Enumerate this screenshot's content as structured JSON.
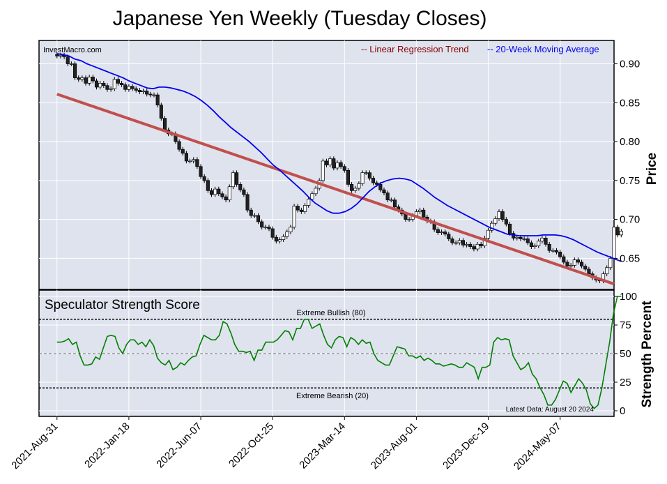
{
  "title": "Japanese Yen Weekly (Tuesday Closes)",
  "watermark": "InvestMacro.com",
  "legend": {
    "regression": "-- Linear Regression Trend",
    "moving_average": "-- 20-Week Moving Average"
  },
  "colors": {
    "panel_bg": "#dfe3ee",
    "regression": "#c0504d",
    "moving_average": "#0000ee",
    "strength": "#008000",
    "legend_red": "#8b0000"
  },
  "chart_data": [
    {
      "type": "candlestick",
      "ylabel": "Price",
      "ylim": [
        0.61,
        0.93
      ],
      "yticks": [
        "0.90",
        "0.85",
        "0.80",
        "0.75",
        "0.70",
        "0.65"
      ],
      "xlim": [
        -5,
        155
      ],
      "x_tick_labels": [
        "2021-Aug-31",
        "2022-Jan-18",
        "2022-Jun-07",
        "2022-Oct-25",
        "2023-Mar-14",
        "2023-Aug-01",
        "2023-Dec-19",
        "2024-May-07"
      ],
      "x_tick_weeks": [
        0,
        20,
        40,
        60,
        80,
        100,
        120,
        140
      ],
      "regression_line": {
        "x": [
          0,
          155
        ],
        "y": [
          0.861,
          0.617
        ]
      },
      "closes": [
        0.91,
        0.911,
        0.909,
        0.9,
        0.9,
        0.882,
        0.88,
        0.882,
        0.875,
        0.883,
        0.878,
        0.87,
        0.875,
        0.872,
        0.867,
        0.868,
        0.88,
        0.875,
        0.873,
        0.867,
        0.871,
        0.868,
        0.866,
        0.864,
        0.865,
        0.861,
        0.86,
        0.86,
        0.847,
        0.83,
        0.815,
        0.81,
        0.81,
        0.8,
        0.79,
        0.785,
        0.775,
        0.775,
        0.777,
        0.768,
        0.755,
        0.75,
        0.737,
        0.732,
        0.739,
        0.733,
        0.729,
        0.725,
        0.742,
        0.76,
        0.745,
        0.738,
        0.732,
        0.712,
        0.705,
        0.705,
        0.697,
        0.69,
        0.69,
        0.688,
        0.677,
        0.672,
        0.674,
        0.678,
        0.684,
        0.69,
        0.717,
        0.712,
        0.71,
        0.718,
        0.726,
        0.733,
        0.74,
        0.75,
        0.775,
        0.77,
        0.778,
        0.766,
        0.773,
        0.768,
        0.763,
        0.745,
        0.737,
        0.74,
        0.746,
        0.76,
        0.76,
        0.753,
        0.747,
        0.745,
        0.738,
        0.734,
        0.725,
        0.725,
        0.716,
        0.712,
        0.707,
        0.7,
        0.7,
        0.705,
        0.71,
        0.712,
        0.703,
        0.698,
        0.697,
        0.687,
        0.683,
        0.684,
        0.681,
        0.675,
        0.67,
        0.67,
        0.673,
        0.667,
        0.668,
        0.665,
        0.662,
        0.668,
        0.666,
        0.676,
        0.686,
        0.695,
        0.701,
        0.71,
        0.7,
        0.694,
        0.682,
        0.676,
        0.677,
        0.675,
        0.675,
        0.67,
        0.665,
        0.666,
        0.672,
        0.676,
        0.668,
        0.66,
        0.66,
        0.658,
        0.652,
        0.645,
        0.64,
        0.641,
        0.648,
        0.645,
        0.64,
        0.636,
        0.63,
        0.625,
        0.622,
        0.621,
        0.63,
        0.638,
        0.65,
        0.69,
        0.68,
        0.685
      ],
      "moving_average": [
        0.913,
        0.912,
        0.91,
        0.906,
        0.904,
        0.9,
        0.897,
        0.894,
        0.891,
        0.888,
        0.885,
        0.882,
        0.878,
        0.875,
        0.872,
        0.869,
        0.868,
        0.87,
        0.87,
        0.869,
        0.867,
        0.865,
        0.862,
        0.858,
        0.853,
        0.847,
        0.84,
        0.832,
        0.825,
        0.818,
        0.812,
        0.806,
        0.8,
        0.793,
        0.786,
        0.778,
        0.77,
        0.764,
        0.757,
        0.75,
        0.743,
        0.736,
        0.728,
        0.721,
        0.716,
        0.711,
        0.708,
        0.708,
        0.71,
        0.714,
        0.72,
        0.728,
        0.736,
        0.742,
        0.747,
        0.75,
        0.752,
        0.753,
        0.752,
        0.75,
        0.745,
        0.74,
        0.734,
        0.728,
        0.723,
        0.718,
        0.714,
        0.71,
        0.706,
        0.702,
        0.698,
        0.694,
        0.69,
        0.687,
        0.684,
        0.681,
        0.68,
        0.679,
        0.679,
        0.679,
        0.679,
        0.68,
        0.68,
        0.68,
        0.679,
        0.677,
        0.674,
        0.67,
        0.666,
        0.662,
        0.658,
        0.655,
        0.652,
        0.649,
        0.646
      ],
      "moving_average_start_week": 0
    },
    {
      "type": "line",
      "title": "Speculator Strength Score",
      "ylabel": "Strength Percent",
      "ylim": [
        0,
        100
      ],
      "yticks": [
        "100",
        "75",
        "50",
        "25",
        "0"
      ],
      "xlim": [
        -5,
        155
      ],
      "reference_lines": [
        {
          "value": 80,
          "label": "Extreme Bullish (80)"
        },
        {
          "value": 50,
          "label": ""
        },
        {
          "value": 20,
          "label": "Extreme Bearish (20)"
        }
      ],
      "note": "Latest Data: August 20 2024",
      "values": [
        60,
        60,
        61,
        63,
        58,
        60,
        48,
        40,
        40,
        41,
        47,
        45,
        55,
        65,
        66,
        65,
        55,
        50,
        58,
        62,
        62,
        58,
        60,
        56,
        62,
        57,
        46,
        42,
        40,
        44,
        36,
        38,
        42,
        40,
        44,
        47,
        48,
        58,
        66,
        64,
        62,
        62,
        66,
        78,
        76,
        68,
        58,
        52,
        52,
        51,
        52,
        44,
        53,
        53,
        60,
        60,
        60,
        62,
        66,
        70,
        69,
        62,
        72,
        72,
        80,
        80,
        72,
        74,
        76,
        66,
        58,
        55,
        62,
        65,
        64,
        56,
        64,
        62,
        58,
        62,
        59,
        60,
        50,
        44,
        42,
        40,
        40,
        48,
        56,
        55,
        54,
        48,
        48,
        46,
        48,
        44,
        46,
        44,
        41,
        41,
        39,
        40,
        41,
        40,
        38,
        38,
        42,
        40,
        38,
        28,
        38,
        38,
        40,
        60,
        64,
        62,
        63,
        62,
        48,
        42,
        36,
        38,
        42,
        32,
        28,
        20,
        14,
        5,
        5,
        10,
        18,
        26,
        24,
        16,
        22,
        28,
        24,
        18,
        6,
        2,
        5,
        20,
        40,
        60,
        85,
        100,
        100
      ],
      "values_start_week": 0
    }
  ]
}
